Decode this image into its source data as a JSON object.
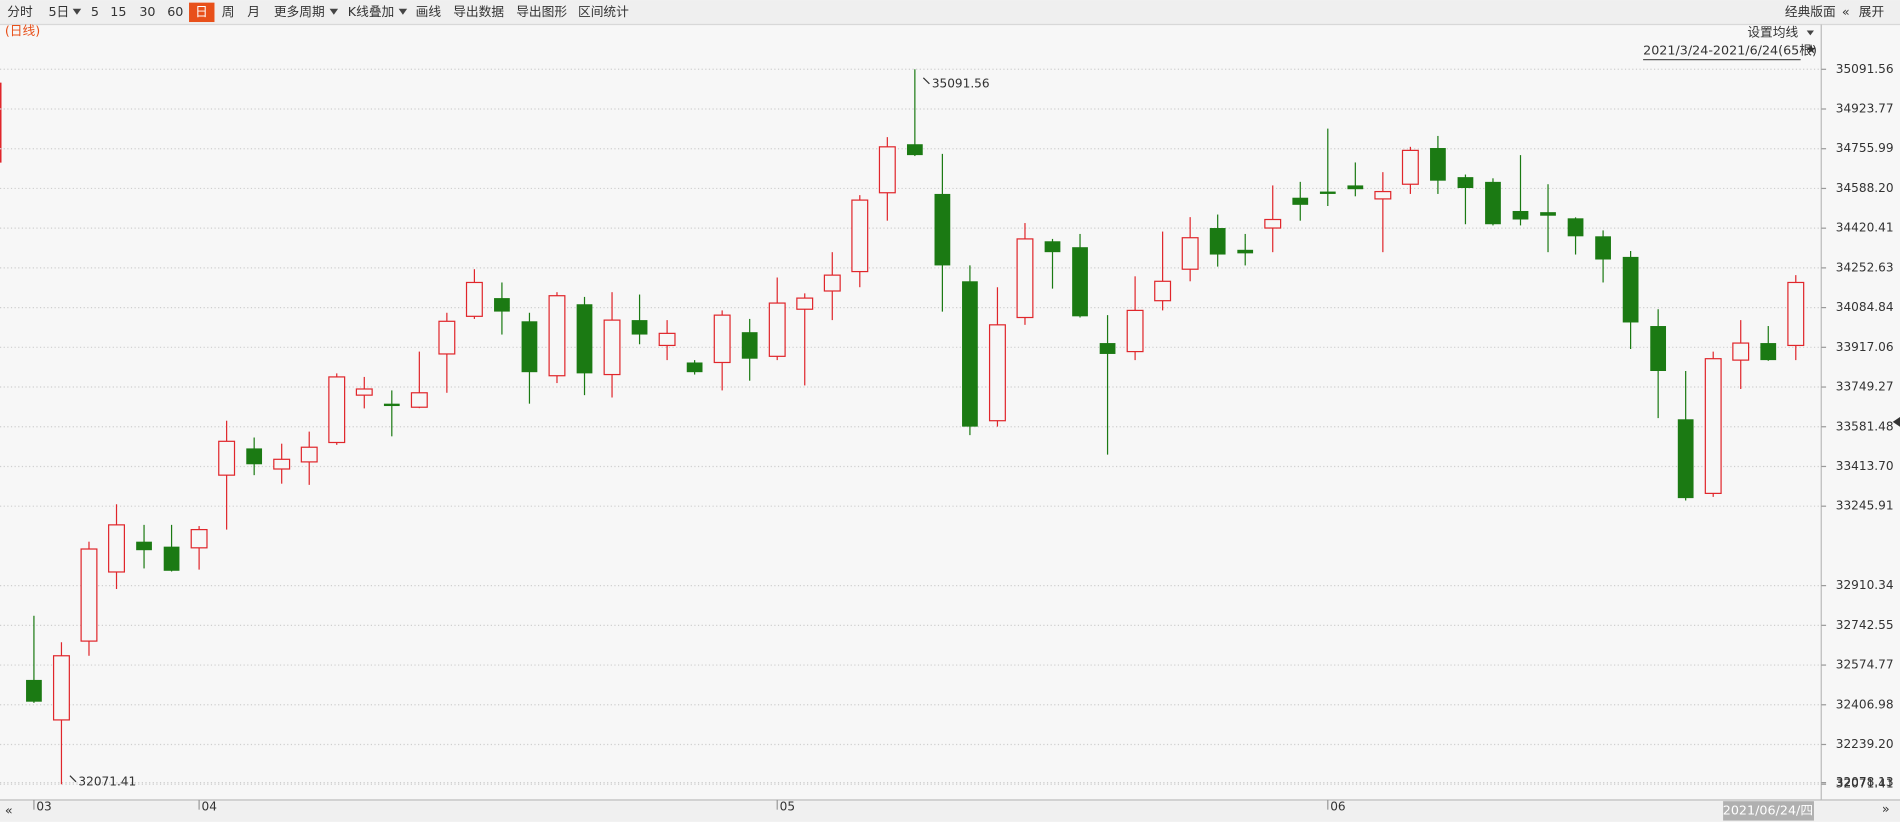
{
  "toolbar": {
    "items": [
      "分时",
      "5日",
      "5",
      "15",
      "30",
      "60",
      "日",
      "周",
      "月",
      "更多周期",
      "K线叠加",
      "画线",
      "导出数据",
      "导出图形",
      "区间统计"
    ],
    "selected": 6,
    "dropdowns": [
      1,
      9,
      10
    ],
    "right_items": [
      "经典版面",
      "展开"
    ]
  },
  "ma_settings": "设置均线",
  "chart_data": {
    "type": "candlestick",
    "period_label": "(日线)",
    "date_range": "2021/3/24-2021/6/24(65根)",
    "current_date": "2021/06/24/四",
    "categories": [
      "03",
      null,
      null,
      null,
      null,
      null,
      "04",
      null,
      null,
      null,
      null,
      null,
      null,
      null,
      null,
      null,
      null,
      null,
      null,
      null,
      null,
      null,
      null,
      null,
      null,
      null,
      null,
      "05",
      null,
      null,
      null,
      null,
      null,
      null,
      null,
      null,
      null,
      null,
      null,
      null,
      null,
      null,
      null,
      null,
      null,
      null,
      null,
      "06",
      null,
      null,
      null,
      null,
      null,
      null,
      null,
      null,
      null,
      null,
      null,
      null,
      null,
      null,
      null,
      null,
      null
    ],
    "open": [
      32512,
      32343,
      32676,
      32968,
      33096,
      33075,
      33070,
      33377,
      33490,
      33403,
      33433,
      33515,
      33715,
      33679,
      33664,
      33889,
      34048,
      34125,
      34027,
      33797,
      34099,
      33802,
      34032,
      33925,
      33853,
      33853,
      33981,
      33879,
      34078,
      34155,
      34237,
      34570,
      34775,
      34565,
      34196,
      33607,
      34043,
      34365,
      34340,
      33935,
      33899,
      34114,
      34247,
      34421,
      34329,
      34421,
      34549,
      34575,
      34601,
      34544,
      34606,
      34759,
      34636,
      34616,
      34493,
      34488,
      34462,
      34386,
      34299,
      34007,
      33613,
      33300,
      33863,
      33935,
      33925
    ],
    "high": [
      32783,
      32671,
      33096,
      33254,
      33167,
      33167,
      33162,
      33607,
      33536,
      33510,
      33561,
      33807,
      33792,
      33735,
      33899,
      34063,
      34247,
      34191,
      34063,
      34150,
      34130,
      34150,
      34140,
      34032,
      33863,
      34073,
      34037,
      34212,
      34145,
      34319,
      34560,
      34805,
      35091.56,
      34734,
      34263,
      34171,
      34442,
      34375,
      34396,
      34053,
      34217,
      34406,
      34467,
      34478,
      34396,
      34601,
      34616,
      34841,
      34698,
      34657,
      34764,
      34810,
      34647,
      34631,
      34729,
      34606,
      34466,
      34411,
      34324,
      34078,
      33817,
      33899,
      34032,
      34007,
      34222
    ],
    "low": [
      32415,
      32071.41,
      32614,
      32896,
      32983,
      32970,
      32978,
      33147,
      33377,
      33341,
      33336,
      33505,
      33659,
      33541,
      33660,
      33725,
      34037,
      33971,
      33679,
      33766,
      33715,
      33705,
      33930,
      33863,
      33802,
      33735,
      33776,
      33863,
      33756,
      34032,
      34171,
      34452,
      34725,
      34068,
      33546,
      33582,
      34012,
      34165,
      34043,
      33464,
      33863,
      34073,
      34196,
      34258,
      34263,
      34319,
      34452,
      34514,
      34555,
      34319,
      34565,
      34565,
      34437,
      34432,
      34432,
      34319,
      34309,
      34191,
      33910,
      33618,
      33270,
      33285,
      33741,
      33860,
      33863
    ],
    "close": [
      32420,
      32614,
      33065,
      33167,
      33060,
      32973,
      33147,
      33520,
      33423,
      33444,
      33495,
      33792,
      33741,
      33669,
      33725,
      34027,
      34191,
      34068,
      33812,
      34135,
      33807,
      34032,
      33971,
      33976,
      33812,
      34053,
      33869,
      34104,
      34125,
      34222,
      34539,
      34764,
      34729,
      34263,
      33582,
      34012,
      34375,
      34319,
      34048,
      33889,
      34073,
      34196,
      34380,
      34309,
      34314,
      34457,
      34519,
      34565,
      34585,
      34575,
      34749,
      34621,
      34590,
      34437,
      34457,
      34473,
      34386,
      34288,
      34022,
      33817,
      33280,
      33869,
      33935,
      33863,
      34191
    ],
    "up_color": "#e0262b",
    "down_color": "#1b7a13",
    "ylim": [
      32071.41,
      35091.56
    ],
    "yticks": [
      {
        "value": 32071.41,
        "label": "32071.41"
      },
      {
        "value": 32239.2,
        "label": "32239.20"
      },
      32406.98,
      32574.77,
      32742.55,
      32910.34,
      32078.13,
      33245.91,
      {
        "value": 33413.7,
        "label": "33413.70"
      },
      33581.48,
      33749.27,
      33917.06,
      34084.84,
      34252.63,
      34420.41,
      {
        "value": 34588.2,
        "label": "34588.20"
      },
      34755.99,
      34923.77,
      35091.56
    ],
    "grid": true,
    "annotations": [
      {
        "index": 32,
        "field": "high"
      },
      {
        "index": 1,
        "field": "low"
      }
    ]
  }
}
